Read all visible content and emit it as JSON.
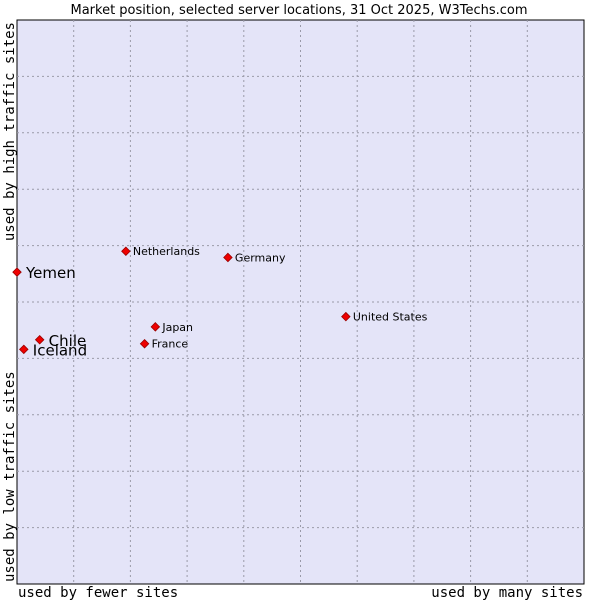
{
  "chart_data": {
    "type": "scatter",
    "title": "Market position, selected server locations, 31 Oct 2025, W3Techs.com",
    "xlabel_left": "used by fewer sites",
    "xlabel_right": "used by many sites",
    "ylabel_bottom": "used by low traffic sites",
    "ylabel_top": "used by high traffic sites",
    "xlim": [
      0,
      10
    ],
    "ylim": [
      0,
      10
    ],
    "grid": true,
    "points": [
      {
        "label": "Netherlands",
        "x": 1.92,
        "y": 5.9,
        "size": "small"
      },
      {
        "label": "Germany",
        "x": 3.72,
        "y": 5.79,
        "size": "small"
      },
      {
        "label": "Yemen",
        "x": 0.0,
        "y": 5.53,
        "size": "large"
      },
      {
        "label": "United States",
        "x": 5.8,
        "y": 4.74,
        "size": "small"
      },
      {
        "label": "Japan",
        "x": 2.44,
        "y": 4.56,
        "size": "small"
      },
      {
        "label": "France",
        "x": 2.25,
        "y": 4.26,
        "size": "small"
      },
      {
        "label": "Chile",
        "x": 0.4,
        "y": 4.33,
        "size": "large"
      },
      {
        "label": "Iceland",
        "x": 0.12,
        "y": 4.16,
        "size": "large"
      }
    ]
  }
}
